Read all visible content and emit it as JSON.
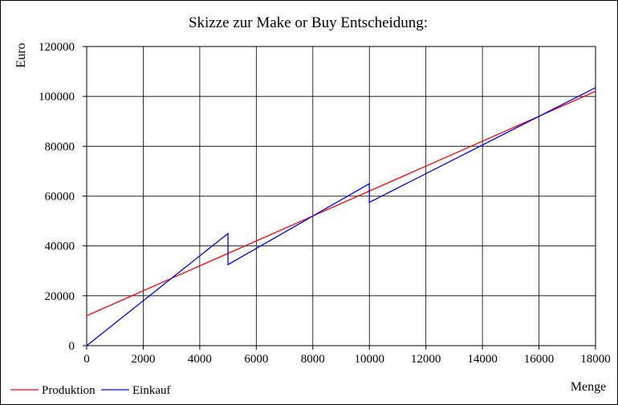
{
  "chart_data": {
    "type": "line",
    "title": "Skizze zur Make or Buy Entscheidung:",
    "xlabel": "Menge",
    "ylabel": "Euro",
    "xlim": [
      0,
      18000
    ],
    "ylim": [
      0,
      120000
    ],
    "x_ticks": [
      0,
      2000,
      4000,
      6000,
      8000,
      10000,
      12000,
      14000,
      16000,
      18000
    ],
    "y_ticks": [
      0,
      20000,
      40000,
      60000,
      80000,
      100000,
      120000
    ],
    "x_tick_labels": [
      "0",
      "2000",
      "4000",
      "6000",
      "8000",
      "10000",
      "12000",
      "14000",
      "16000",
      "18000"
    ],
    "y_tick_labels": [
      "0",
      "20000",
      "40000",
      "60000",
      "80000",
      "100000",
      "120000"
    ],
    "grid": true,
    "legend_position": "bottom-left",
    "series": [
      {
        "name": "Produktion",
        "color": "#ff0000",
        "points": [
          [
            0,
            12000
          ],
          [
            18000,
            102000
          ]
        ]
      },
      {
        "name": "Einkauf",
        "color": "#0000ff",
        "points": [
          [
            0,
            0
          ],
          [
            5000,
            45000
          ],
          [
            5000,
            32500
          ],
          [
            10000,
            65000
          ],
          [
            10000,
            57500
          ],
          [
            18000,
            103500
          ]
        ]
      }
    ]
  }
}
